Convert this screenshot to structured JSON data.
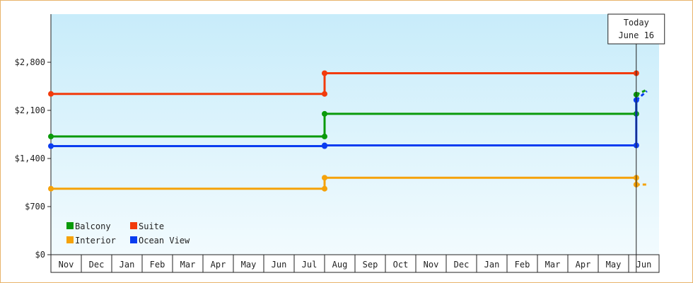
{
  "chart_data": {
    "type": "line",
    "title": "",
    "xlabel": "",
    "ylabel": "",
    "ylim": [
      0,
      3500
    ],
    "y_ticks": [
      {
        "value": 0,
        "label": "$0"
      },
      {
        "value": 700,
        "label": "$700"
      },
      {
        "value": 1400,
        "label": "$1,400"
      },
      {
        "value": 2100,
        "label": "$2,100"
      },
      {
        "value": 2800,
        "label": "$2,800"
      }
    ],
    "x_months": [
      "Nov",
      "Dec",
      "Jan",
      "Feb",
      "Mar",
      "Apr",
      "May",
      "Jun",
      "Jul",
      "Aug",
      "Sep",
      "Oct",
      "Nov",
      "Dec",
      "Jan",
      "Feb",
      "Mar",
      "Apr",
      "May",
      "Jun"
    ],
    "grid": false,
    "background": "gradient light blue",
    "legend_position": "bottom-left",
    "today_marker": {
      "line1": "Today",
      "line2": "June 16",
      "month_index": 19.25
    },
    "series": [
      {
        "name": "Balcony",
        "color": "#0a9a0a",
        "points": [
          [
            0,
            1720
          ],
          [
            9,
            1720
          ],
          [
            9,
            2050
          ],
          [
            19.25,
            2050
          ],
          [
            19.25,
            2330
          ]
        ],
        "projection": [
          [
            19.25,
            2330
          ],
          [
            19.6,
            2400
          ]
        ]
      },
      {
        "name": "Suite",
        "color": "#f23b0c",
        "points": [
          [
            0,
            2340
          ],
          [
            9,
            2340
          ],
          [
            9,
            2640
          ],
          [
            19.25,
            2640
          ]
        ],
        "projection": []
      },
      {
        "name": "Interior",
        "color": "#f5a20a",
        "points": [
          [
            0,
            960
          ],
          [
            9,
            960
          ],
          [
            9,
            1120
          ],
          [
            19.25,
            1120
          ],
          [
            19.25,
            1020
          ]
        ],
        "projection": [
          [
            19.25,
            1020
          ],
          [
            19.6,
            1020
          ]
        ]
      },
      {
        "name": "Ocean View",
        "color": "#0a3cf0",
        "points": [
          [
            0,
            1580
          ],
          [
            9,
            1580
          ],
          [
            9,
            1590
          ],
          [
            19.25,
            1590
          ],
          [
            19.25,
            2250
          ]
        ],
        "projection": [
          [
            19.25,
            2250
          ],
          [
            19.6,
            2380
          ]
        ]
      }
    ]
  }
}
